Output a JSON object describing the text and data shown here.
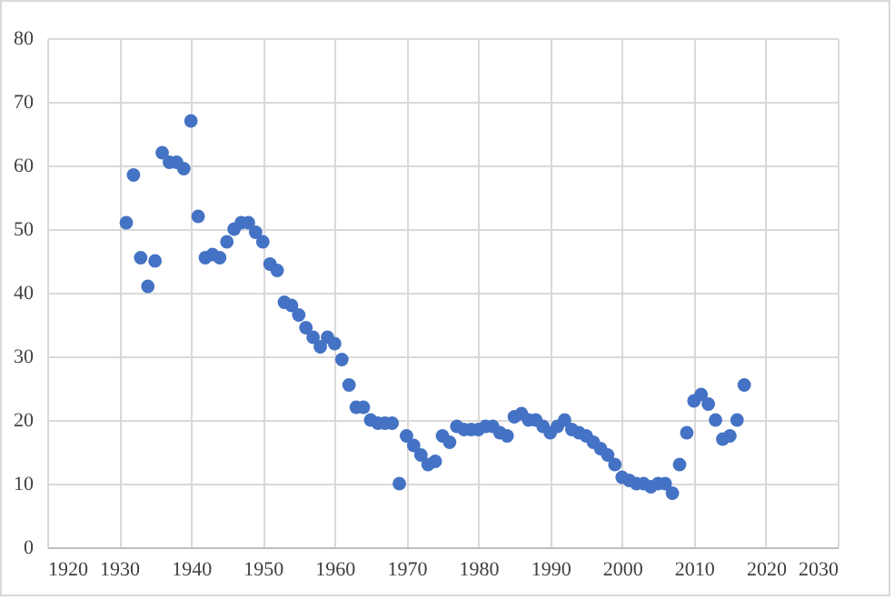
{
  "chart_data": {
    "type": "scatter",
    "marker": "circle",
    "grid": true,
    "color": "#4472c4",
    "x": [
      1931,
      1932,
      1933,
      1934,
      1935,
      1936,
      1937,
      1938,
      1939,
      1940,
      1941,
      1942,
      1943,
      1944,
      1945,
      1946,
      1947,
      1948,
      1949,
      1950,
      1951,
      1952,
      1953,
      1954,
      1955,
      1956,
      1957,
      1958,
      1959,
      1960,
      1961,
      1962,
      1963,
      1964,
      1965,
      1966,
      1967,
      1968,
      1969,
      1970,
      1971,
      1972,
      1973,
      1974,
      1975,
      1976,
      1977,
      1978,
      1979,
      1980,
      1981,
      1982,
      1983,
      1984,
      1985,
      1986,
      1987,
      1988,
      1989,
      1990,
      1991,
      1992,
      1993,
      1994,
      1995,
      1996,
      1997,
      1998,
      1999,
      2000,
      2001,
      2002,
      2003,
      2004,
      2005,
      2006,
      2007,
      2008,
      2009,
      2010,
      2011,
      2012,
      2013,
      2014,
      2015,
      2016,
      2017
    ],
    "values": [
      51,
      58.5,
      45.5,
      41,
      45,
      62,
      60.5,
      60.5,
      59.5,
      67,
      52,
      45.5,
      46,
      45.5,
      48,
      50,
      51,
      51,
      49.5,
      48,
      44.5,
      43.5,
      38.5,
      38,
      36.5,
      34.5,
      33,
      31.5,
      33,
      32,
      29.5,
      25.5,
      22,
      22,
      20,
      19.5,
      19.5,
      19.5,
      10,
      17.5,
      16,
      14.5,
      13,
      13.5,
      17.5,
      16.5,
      19,
      18.5,
      18.5,
      18.5,
      19,
      19,
      18,
      17.5,
      20.5,
      21,
      20,
      20,
      19,
      18,
      19,
      20,
      18.5,
      18,
      17.5,
      16.5,
      15.5,
      14.5,
      13,
      11,
      10.5,
      10,
      10,
      9.5,
      10,
      10,
      8.5,
      13,
      18,
      23,
      24,
      22.5,
      20,
      17,
      17.5,
      20,
      25.5
    ],
    "xlim": [
      1920,
      2030
    ],
    "xticks": [
      1920,
      1930,
      1940,
      1950,
      1960,
      1970,
      1980,
      1990,
      2000,
      2010,
      2020,
      2030
    ],
    "ylim": [
      0,
      80
    ],
    "yticks": [
      0,
      10,
      20,
      30,
      40,
      50,
      60,
      70,
      80
    ]
  }
}
